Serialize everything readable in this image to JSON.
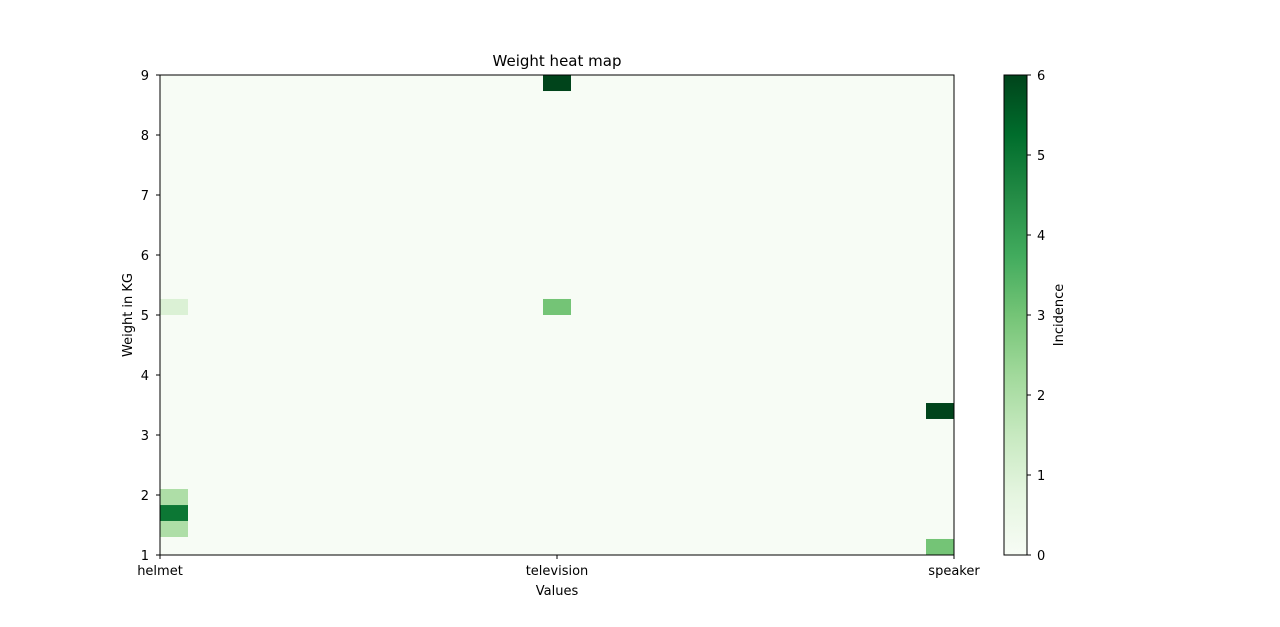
{
  "chart_data": {
    "type": "heatmap",
    "title": "Weight heat map",
    "xlabel": "Values",
    "ylabel": "Weight in KG",
    "colorbar_label": "Incidence",
    "x_categories": [
      "helmet",
      "television",
      "speaker"
    ],
    "ylim": [
      1,
      9
    ],
    "yticks": [
      1,
      2,
      3,
      4,
      5,
      6,
      7,
      8,
      9
    ],
    "color_range": [
      0,
      6
    ],
    "colorbar_ticks": [
      0,
      1,
      2,
      3,
      4,
      5,
      6
    ],
    "colormap": [
      "#f7fcf5",
      "#e5f5e0",
      "#c7e9c0",
      "#a1d99b",
      "#74c476",
      "#41ab5d",
      "#238b45",
      "#006d2c",
      "#00441b"
    ],
    "background_color": "#f7fcf5",
    "cells": [
      {
        "x": "helmet",
        "y_range": [
          1.3,
          1.567
        ],
        "value": 2
      },
      {
        "x": "helmet",
        "y_range": [
          1.567,
          1.833
        ],
        "value": 5
      },
      {
        "x": "helmet",
        "y_range": [
          1.833,
          2.1
        ],
        "value": 2
      },
      {
        "x": "helmet",
        "y_range": [
          5.0,
          5.267
        ],
        "value": 1
      },
      {
        "x": "television",
        "y_range": [
          5.0,
          5.267
        ],
        "value": 3
      },
      {
        "x": "television",
        "y_range": [
          8.733,
          9.0
        ],
        "value": 6
      },
      {
        "x": "speaker",
        "y_range": [
          1.0,
          1.267
        ],
        "value": 3
      },
      {
        "x": "speaker",
        "y_range": [
          3.267,
          3.533
        ],
        "value": 6
      }
    ],
    "grid": false,
    "colorbar_position": "right"
  }
}
